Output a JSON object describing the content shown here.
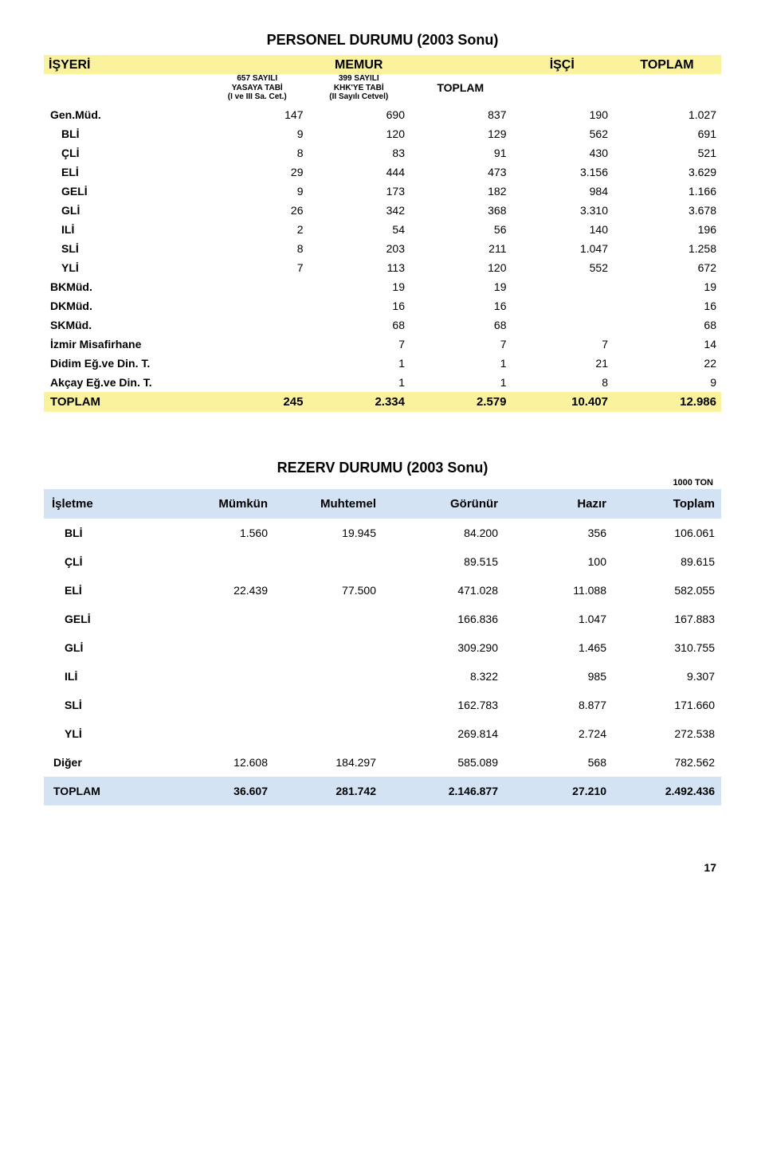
{
  "section1": {
    "title": "PERSONEL DURUMU (2003 Sonu)",
    "head_main": [
      "İŞYERİ",
      "MEMUR",
      "",
      "",
      "İŞÇİ",
      "TOPLAM"
    ],
    "head_sub": [
      "",
      "657 SAYILI\nYASAYA TABİ\n(I ve III Sa. Cet.)",
      "399 SAYILI\nKHK'YE TABİ\n(II Sayılı Cetvel)",
      "TOPLAM",
      "",
      ""
    ],
    "accent": "#fbf29e",
    "rows": [
      {
        "label": "Gen.Müd.",
        "bold": true,
        "indent": false,
        "cells": [
          "147",
          "690",
          "837",
          "190",
          "1.027"
        ]
      },
      {
        "label": "BLİ",
        "bold": true,
        "indent": true,
        "cells": [
          "9",
          "120",
          "129",
          "562",
          "691"
        ]
      },
      {
        "label": "ÇLİ",
        "bold": true,
        "indent": true,
        "cells": [
          "8",
          "83",
          "91",
          "430",
          "521"
        ]
      },
      {
        "label": "ELİ",
        "bold": true,
        "indent": true,
        "cells": [
          "29",
          "444",
          "473",
          "3.156",
          "3.629"
        ]
      },
      {
        "label": "GELİ",
        "bold": true,
        "indent": true,
        "cells": [
          "9",
          "173",
          "182",
          "984",
          "1.166"
        ]
      },
      {
        "label": "GLİ",
        "bold": true,
        "indent": true,
        "cells": [
          "26",
          "342",
          "368",
          "3.310",
          "3.678"
        ]
      },
      {
        "label": "ILİ",
        "bold": true,
        "indent": true,
        "cells": [
          "2",
          "54",
          "56",
          "140",
          "196"
        ]
      },
      {
        "label": "SLİ",
        "bold": true,
        "indent": true,
        "cells": [
          "8",
          "203",
          "211",
          "1.047",
          "1.258"
        ]
      },
      {
        "label": "YLİ",
        "bold": true,
        "indent": true,
        "cells": [
          "7",
          "113",
          "120",
          "552",
          "672"
        ]
      },
      {
        "label": "BKMüd.",
        "bold": true,
        "indent": false,
        "cells": [
          "",
          "19",
          "19",
          "",
          "19"
        ]
      },
      {
        "label": "DKMüd.",
        "bold": true,
        "indent": false,
        "cells": [
          "",
          "16",
          "16",
          "",
          "16"
        ]
      },
      {
        "label": "SKMüd.",
        "bold": true,
        "indent": false,
        "cells": [
          "",
          "68",
          "68",
          "",
          "68"
        ]
      },
      {
        "label": "İzmir Misafirhane",
        "bold": true,
        "indent": false,
        "cells": [
          "",
          "7",
          "7",
          "7",
          "14"
        ]
      },
      {
        "label": "Didim Eğ.ve Din. T.",
        "bold": true,
        "indent": false,
        "cells": [
          "",
          "1",
          "1",
          "21",
          "22"
        ]
      },
      {
        "label": "Akçay Eğ.ve Din. T.",
        "bold": true,
        "indent": false,
        "cells": [
          "",
          "1",
          "1",
          "8",
          "9"
        ]
      }
    ],
    "total": {
      "label": "TOPLAM",
      "cells": [
        "245",
        "2.334",
        "2.579",
        "10.407",
        "12.986"
      ]
    }
  },
  "section2": {
    "title": "REZERV DURUMU (2003 Sonu)",
    "unit": "1000 TON",
    "accent": "#d4e3f4",
    "head": [
      "İşletme",
      "Mümkün",
      "Muhtemel",
      "Görünür",
      "Hazır",
      "Toplam"
    ],
    "rows": [
      {
        "label": "BLİ",
        "indent": true,
        "cells": [
          "1.560",
          "19.945",
          "84.200",
          "356",
          "106.061"
        ]
      },
      {
        "label": "ÇLİ",
        "indent": true,
        "cells": [
          "",
          "",
          "89.515",
          "100",
          "89.615"
        ]
      },
      {
        "label": "ELİ",
        "indent": true,
        "cells": [
          "22.439",
          "77.500",
          "471.028",
          "11.088",
          "582.055"
        ]
      },
      {
        "label": "GELİ",
        "indent": true,
        "cells": [
          "",
          "",
          "166.836",
          "1.047",
          "167.883"
        ]
      },
      {
        "label": "GLİ",
        "indent": true,
        "cells": [
          "",
          "",
          "309.290",
          "1.465",
          "310.755"
        ]
      },
      {
        "label": "ILİ",
        "indent": true,
        "cells": [
          "",
          "",
          "8.322",
          "985",
          "9.307"
        ]
      },
      {
        "label": "SLİ",
        "indent": true,
        "cells": [
          "",
          "",
          "162.783",
          "8.877",
          "171.660"
        ]
      },
      {
        "label": "YLİ",
        "indent": true,
        "cells": [
          "",
          "",
          "269.814",
          "2.724",
          "272.538"
        ]
      },
      {
        "label": "Diğer",
        "indent": false,
        "cells": [
          "12.608",
          "184.297",
          "585.089",
          "568",
          "782.562"
        ]
      }
    ],
    "total": {
      "label": "TOPLAM",
      "cells": [
        "36.607",
        "281.742",
        "2.146.877",
        "27.210",
        "2.492.436"
      ]
    }
  },
  "page_number": "17"
}
